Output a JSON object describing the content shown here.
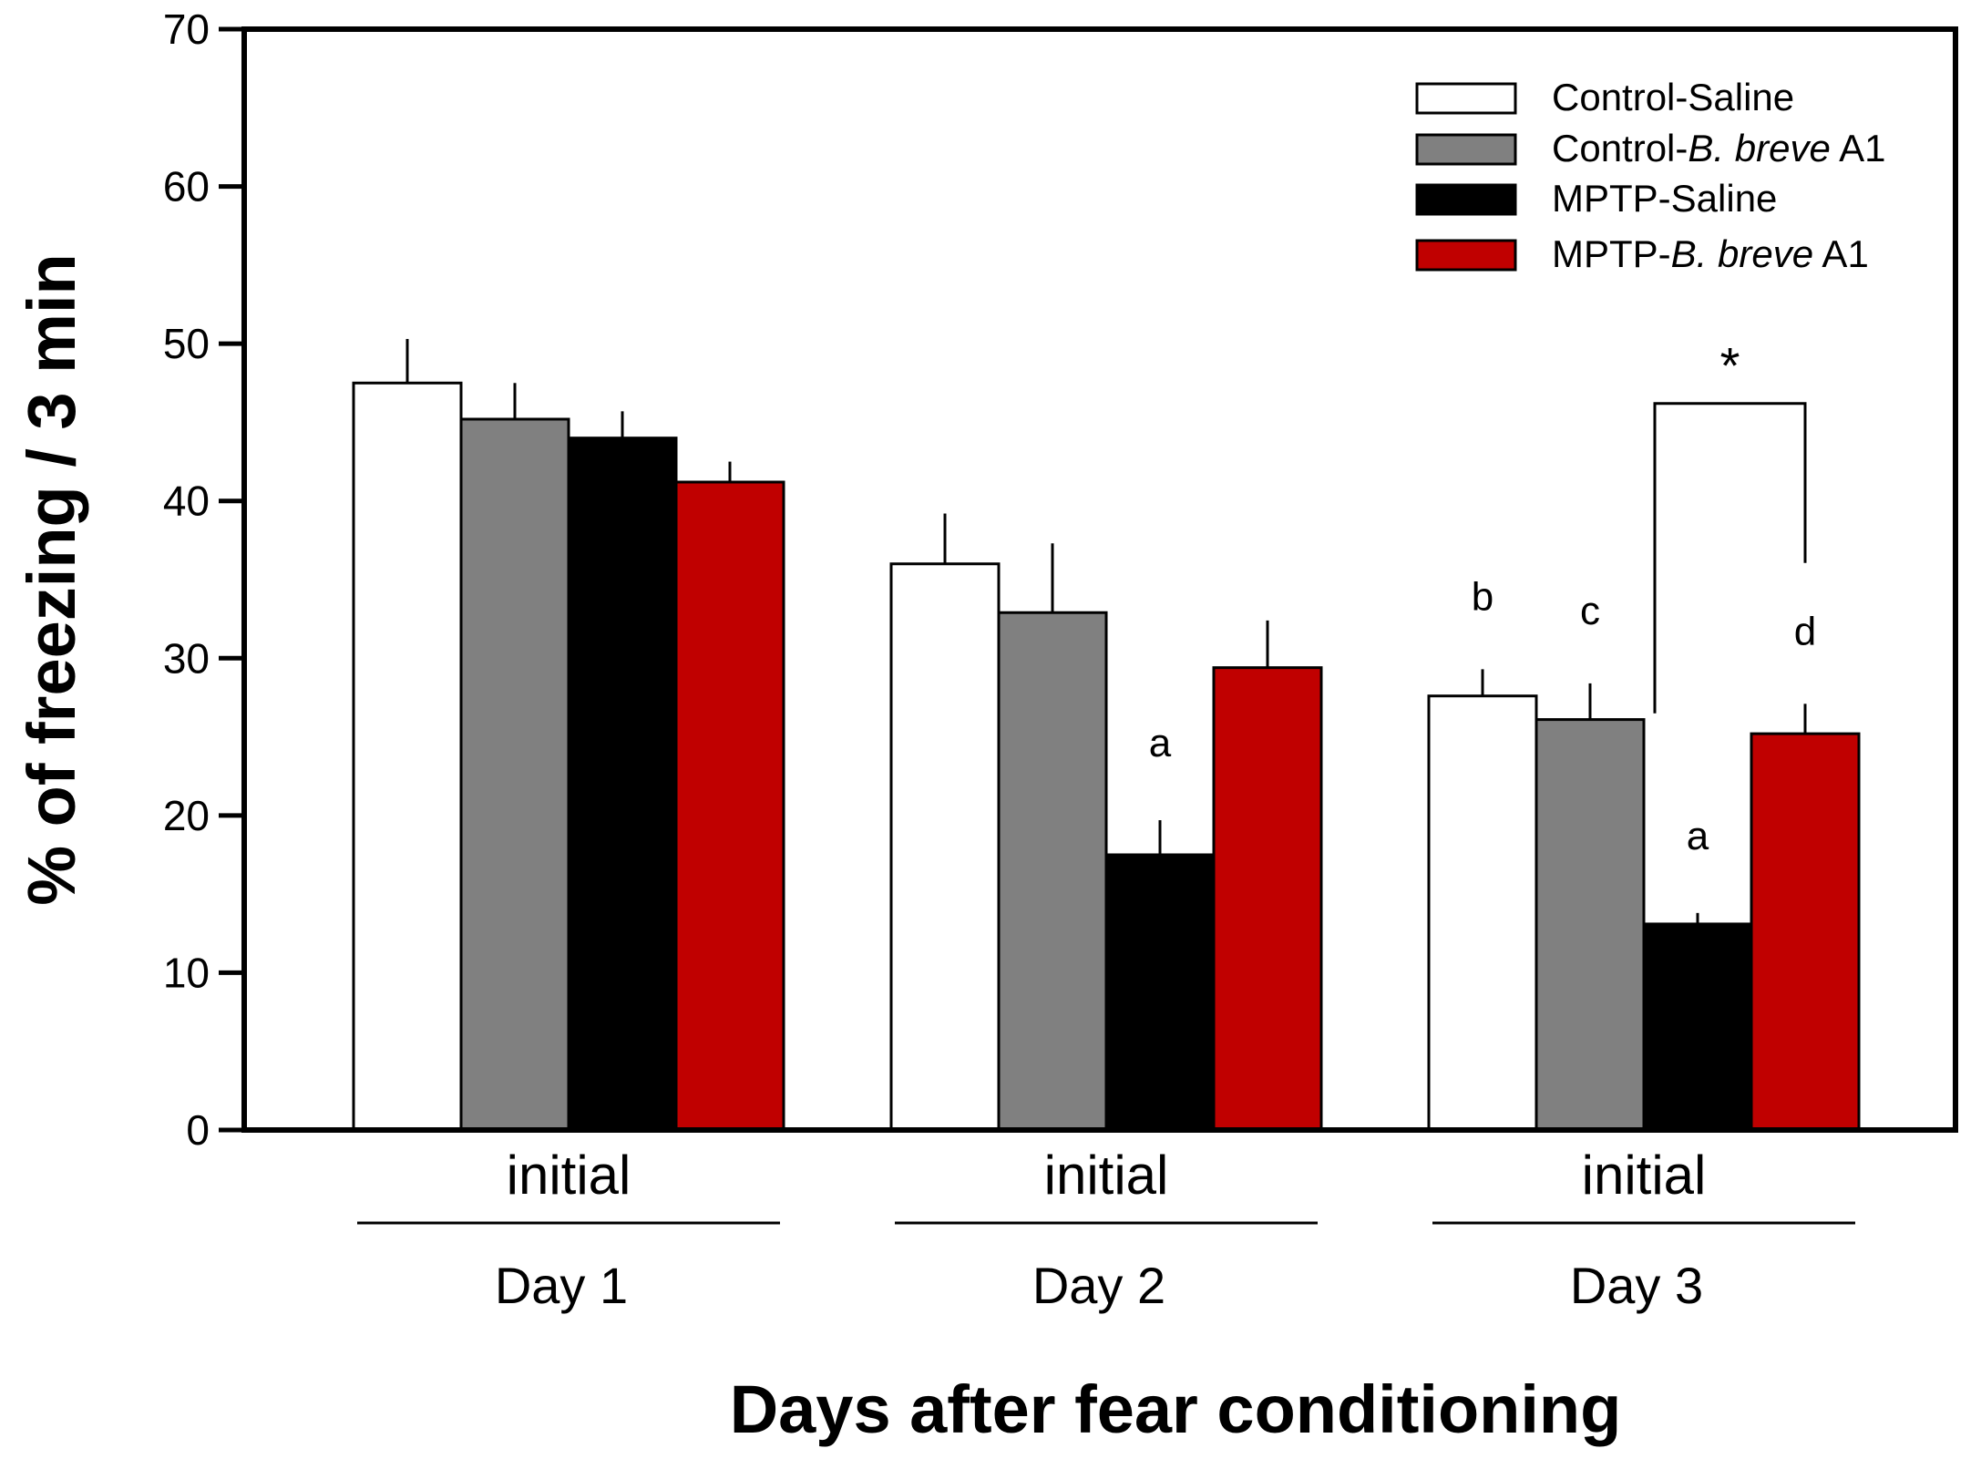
{
  "chart_data": {
    "type": "bar",
    "ylabel": "% of freezing / 3 min",
    "xlabel": "Days after fear conditioning",
    "ylim": [
      0,
      70
    ],
    "yticks": [
      0,
      10,
      20,
      30,
      40,
      50,
      60,
      70
    ],
    "groups": [
      {
        "sublabel": "initial",
        "label": "Day 1"
      },
      {
        "sublabel": "initial",
        "label": "Day 2"
      },
      {
        "sublabel": "initial",
        "label": "Day 3"
      }
    ],
    "series": [
      {
        "name": "Control-Saline",
        "legend_parts": [
          {
            "t": "Control-Saline",
            "i": false
          }
        ],
        "color": "#ffffff",
        "values": [
          47.5,
          36.0,
          27.6
        ],
        "errors": [
          2.8,
          3.2,
          1.7
        ]
      },
      {
        "name": "Control-B. breve A1",
        "legend_parts": [
          {
            "t": "Control-",
            "i": false
          },
          {
            "t": "B. breve",
            "i": true
          },
          {
            "t": " A1",
            "i": false
          }
        ],
        "color": "#808080",
        "values": [
          45.2,
          32.9,
          26.1
        ],
        "errors": [
          2.3,
          4.4,
          2.3
        ]
      },
      {
        "name": "MPTP-Saline",
        "legend_parts": [
          {
            "t": "MPTP-Saline",
            "i": false
          }
        ],
        "color": "#000000",
        "values": [
          44.0,
          17.5,
          13.1
        ],
        "errors": [
          1.7,
          2.2,
          0.7
        ]
      },
      {
        "name": "MPTP-B. breve A1",
        "legend_parts": [
          {
            "t": "MPTP-",
            "i": false
          },
          {
            "t": "B. breve",
            "i": true
          },
          {
            "t": " A1",
            "i": false
          }
        ],
        "color": "#c00000",
        "values": [
          41.2,
          29.4,
          25.2
        ],
        "errors": [
          1.3,
          3.0,
          1.9
        ]
      }
    ],
    "annotations": [
      {
        "text": "a",
        "group": 1,
        "series": 2
      },
      {
        "text": "b",
        "group": 2,
        "series": 0
      },
      {
        "text": "c",
        "group": 2,
        "series": 1
      },
      {
        "text": "a",
        "group": 2,
        "series": 2
      },
      {
        "text": "d",
        "group": 2,
        "series": 3
      }
    ],
    "significance": {
      "text": "*",
      "group": 2,
      "from_series": 2,
      "to_series": 3,
      "top": 46.2
    }
  }
}
